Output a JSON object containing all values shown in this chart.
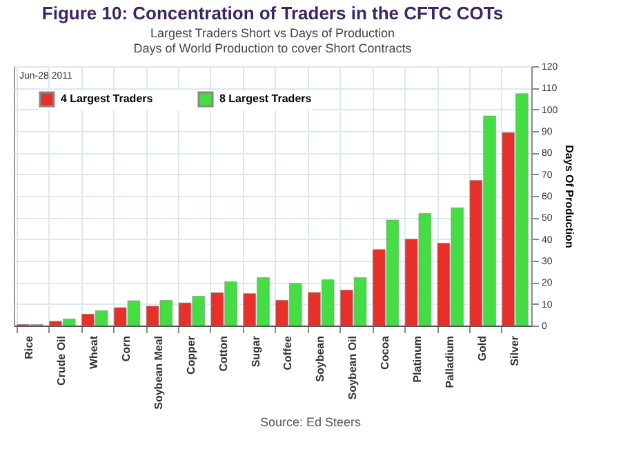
{
  "chart_data": {
    "type": "bar",
    "title": "Figure 10: Concentration of Traders in the CFTC COTs",
    "subtitle": "Largest Traders Short vs Days of Production",
    "ylabel": "Days Of Production",
    "annotations": [
      "Jun-28 2011",
      "Days of World Production to cover Short Contracts",
      "Source: Ed Steers"
    ],
    "categories": [
      "Rice",
      "Crude Oil",
      "Wheat",
      "Corn",
      "Soybean Meal",
      "Copper",
      "Cotton",
      "Sugar",
      "Coffee",
      "Soybean",
      "Soybean Oil",
      "Cocoa",
      "Platinum",
      "Palladium",
      "Gold",
      "Silver"
    ],
    "series": [
      {
        "name": "4 Largest Traders",
        "color": "#e8302a",
        "values": [
          0.5,
          2,
          5.3,
          8.3,
          9,
          10.5,
          15.2,
          14.8,
          11.7,
          15.3,
          16.4,
          35.2,
          40,
          38.1,
          67.2,
          89.3
        ]
      },
      {
        "name": "8 Largest Traders",
        "color": "#44dd44",
        "values": [
          0.5,
          3,
          6.9,
          11.5,
          11.7,
          13.6,
          20.3,
          22.2,
          19.5,
          21.2,
          22.2,
          48.8,
          51.9,
          54.5,
          97,
          107.3
        ]
      }
    ],
    "ylim": [
      0,
      120
    ],
    "yticks": [
      0,
      10,
      20,
      30,
      40,
      50,
      60,
      70,
      80,
      90,
      100,
      110,
      120
    ],
    "grid": true,
    "legend": "top left"
  }
}
